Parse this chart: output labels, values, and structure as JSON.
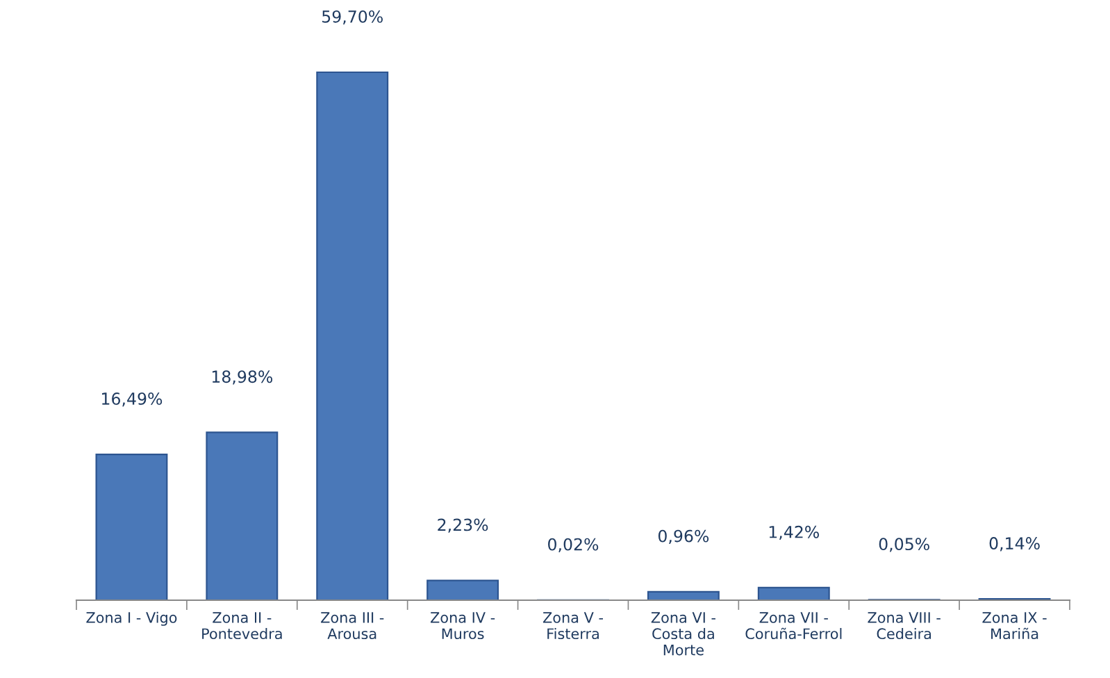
{
  "chart_data": {
    "type": "bar",
    "categories": [
      "Zona I - Vigo",
      "Zona II -\nPontevedra",
      "Zona III -\nArousa",
      "Zona IV -\nMuros",
      "Zona V -\nFisterra",
      "Zona VI -\nCosta da\nMorte",
      "Zona VII -\nCoruña-Ferrol",
      "Zona VIII -\nCedeira",
      "Zona IX -\nMariña"
    ],
    "values": [
      16.49,
      18.98,
      59.7,
      2.23,
      0.02,
      0.96,
      1.42,
      0.05,
      0.14
    ],
    "value_labels": [
      "16,49%",
      "18,98%",
      "59,70%",
      "2,23%",
      "0,02%",
      "0,96%",
      "1,42%",
      "0,05%",
      "0,14%"
    ],
    "color": "#4a78b8"
  }
}
